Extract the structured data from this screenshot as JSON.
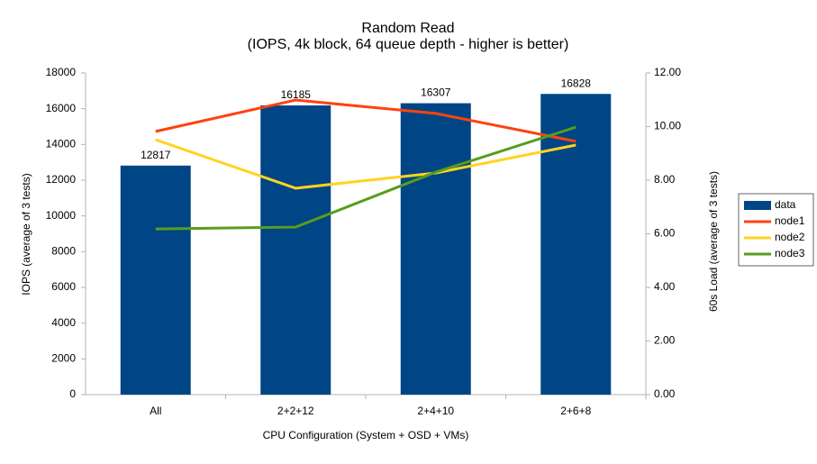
{
  "chart_data": {
    "type": "bar",
    "title": "Random Read",
    "subtitle": "(IOPS, 4k block, 64 queue depth - higher is better)",
    "x_label": "CPU Configuration (System + OSD + VMs)",
    "y_label": "IOPS (average of 3 tests)",
    "y2_label": "60s Load (average of 3 tests)",
    "categories": [
      "All",
      "2+2+12",
      "2+4+10",
      "2+6+8"
    ],
    "series": [
      {
        "name": "data",
        "type": "bar",
        "color": "#004586",
        "values": [
          12817,
          16185,
          16307,
          16828
        ]
      },
      {
        "name": "node1",
        "type": "line",
        "axis": "y2",
        "color": "#ff420e",
        "values": [
          9.82,
          10.99,
          10.49,
          9.45
        ]
      },
      {
        "name": "node2",
        "type": "line",
        "axis": "y2",
        "color": "#ffd320",
        "values": [
          9.51,
          7.7,
          8.27,
          9.31
        ]
      },
      {
        "name": "node3",
        "type": "line",
        "axis": "y2",
        "color": "#579d1c",
        "values": [
          6.18,
          6.25,
          8.3,
          9.98
        ]
      }
    ],
    "ylim": [
      0,
      18000
    ],
    "yticks": [
      0,
      2000,
      4000,
      6000,
      8000,
      10000,
      12000,
      14000,
      16000,
      18000
    ],
    "y2lim": [
      0,
      12
    ],
    "y2ticks": [
      {
        "value": 0,
        "label": "0.00"
      },
      {
        "value": 2,
        "label": "2.00"
      },
      {
        "value": 4,
        "label": "4.00"
      },
      {
        "value": 6,
        "label": "6.00"
      },
      {
        "value": 8,
        "label": "8.00"
      },
      {
        "value": 10,
        "label": "10.00"
      },
      {
        "value": 12,
        "label": "12.00"
      }
    ],
    "grid": false,
    "legend": "right"
  }
}
